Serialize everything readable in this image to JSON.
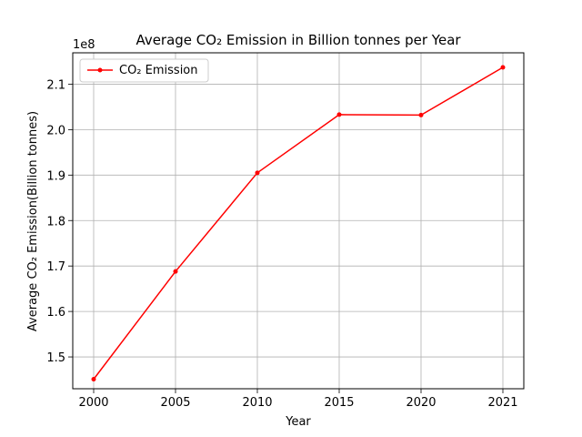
{
  "chart_data": {
    "type": "line",
    "title": "Average CO₂ Emission in Billion tonnes per Year",
    "xlabel": "Year",
    "ylabel": "Average CO₂ Emission(Billion tonnes)",
    "offset_label": "1e8",
    "categories": [
      "2000",
      "2005",
      "2010",
      "2015",
      "2020",
      "2021"
    ],
    "series": [
      {
        "name": "CO₂ Emission",
        "color": "#ff0000",
        "marker": "circle",
        "values": [
          145100000,
          168800000,
          190500000,
          203300000,
          203200000,
          213700000
        ]
      }
    ],
    "yticks": [
      1.5,
      1.6,
      1.7,
      1.8,
      1.9,
      2.0,
      2.1
    ],
    "ylim": [
      143000000,
      216900000
    ],
    "grid": true,
    "legend": "top-left"
  }
}
